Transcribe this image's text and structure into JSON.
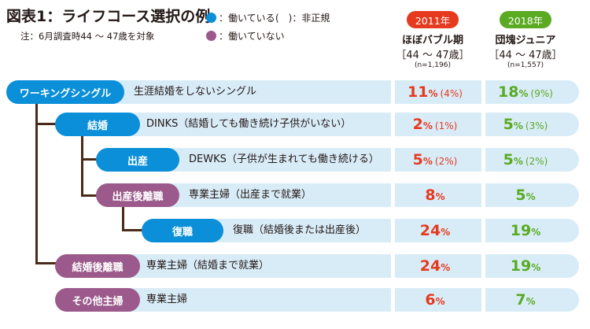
{
  "header": {
    "title": "図表1：ライフコース選択の例",
    "note": "注：6月調査時44 ～ 47歳を対象"
  },
  "legend": {
    "working": "：働いている",
    "irregular": "(　)：非正規",
    "not_working": "：働いていない",
    "working_color": "#0a8fd8",
    "not_working_color": "#9b5a8b"
  },
  "columns": [
    {
      "year": "2011年",
      "name": "ほぼバブル期",
      "range": "［44 ～ 47歳］",
      "n": "(n=1,196)",
      "color": "#e63a1e"
    },
    {
      "year": "2018年",
      "name": "団塊ジュニア",
      "range": "［44 ～ 47歳］",
      "n": "(n=1,557)",
      "color": "#5aaa22"
    }
  ],
  "rows": [
    {
      "label": "ワーキングシングル",
      "type": "working",
      "desc": "生涯結婚をしないシングル",
      "v2011": "11",
      "s2011": "(4%)",
      "v2018": "18",
      "s2018": "(9%)"
    },
    {
      "label": "結婚",
      "type": "working",
      "desc": "DINKS（結婚しても働き続け子供がいない）",
      "v2011": "2",
      "s2011": "(1%)",
      "v2018": "5",
      "s2018": "(3%)"
    },
    {
      "label": "出産",
      "type": "working",
      "desc": "DEWKS（子供が生まれても働き続ける）",
      "v2011": "5",
      "s2011": "(2%)",
      "v2018": "5",
      "s2018": "(2%)"
    },
    {
      "label": "出産後離職",
      "type": "not_working",
      "desc": "専業主婦（出産まで就業）",
      "v2011": "8",
      "s2011": "",
      "v2018": "5",
      "s2018": ""
    },
    {
      "label": "復職",
      "type": "working",
      "desc": "復職（結婚後または出産後）",
      "v2011": "24",
      "s2011": "",
      "v2018": "19",
      "s2018": ""
    },
    {
      "label": "結婚後離職",
      "type": "not_working",
      "desc": "専業主婦（結婚まで就業）",
      "v2011": "24",
      "s2011": "",
      "v2018": "19",
      "s2018": ""
    },
    {
      "label": "その他主婦",
      "type": "not_working",
      "desc": "専業主婦",
      "v2011": "6",
      "s2011": "",
      "v2018": "7",
      "s2018": ""
    }
  ],
  "pct_sign": "%"
}
